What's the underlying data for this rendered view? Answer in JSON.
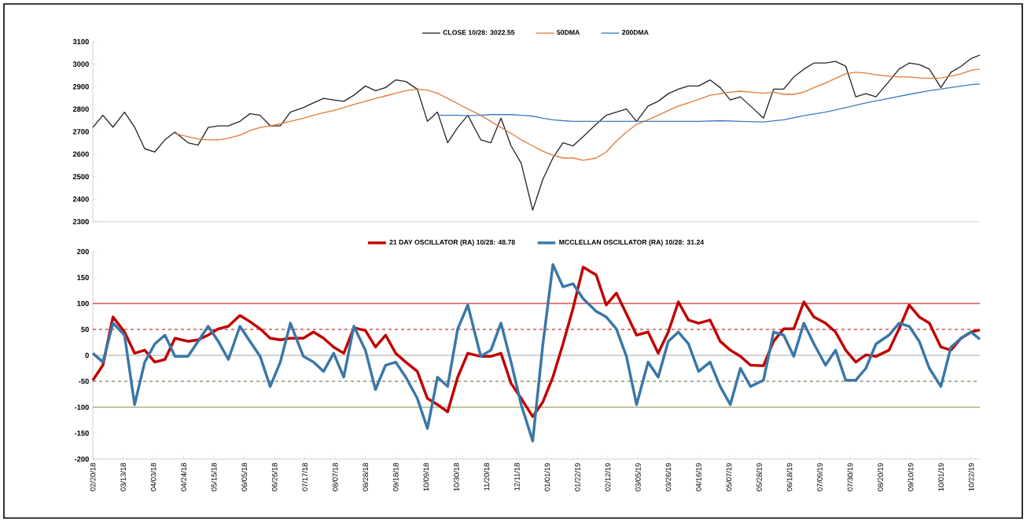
{
  "chart_data": [
    {
      "type": "line",
      "xlim": [
        "2018-02-20",
        "2019-10-28"
      ],
      "ylim": [
        2300,
        3100
      ],
      "yticks": [
        2300,
        2400,
        2500,
        2600,
        2700,
        2800,
        2900,
        3000,
        3100
      ],
      "tick_labels": "y",
      "legend": "top",
      "x": [
        "2018-02-20",
        "2018-02-27",
        "2018-03-06",
        "2018-03-14",
        "2018-03-21",
        "2018-03-28",
        "2018-04-04",
        "2018-04-11",
        "2018-04-18",
        "2018-04-27",
        "2018-05-04",
        "2018-05-11",
        "2018-05-18",
        "2018-05-25",
        "2018-06-02",
        "2018-06-09",
        "2018-06-16",
        "2018-06-23",
        "2018-06-30",
        "2018-07-07",
        "2018-07-16",
        "2018-07-23",
        "2018-07-30",
        "2018-08-06",
        "2018-08-13",
        "2018-08-20",
        "2018-08-28",
        "2018-09-04",
        "2018-09-11",
        "2018-09-18",
        "2018-09-25",
        "2018-10-03",
        "2018-10-10",
        "2018-10-17",
        "2018-10-24",
        "2018-10-31",
        "2018-11-07",
        "2018-11-16",
        "2018-11-23",
        "2018-11-30",
        "2018-12-07",
        "2018-12-14",
        "2018-12-22",
        "2018-12-29",
        "2019-01-05",
        "2019-01-12",
        "2019-01-19",
        "2019-01-26",
        "2019-02-04",
        "2019-02-11",
        "2019-02-18",
        "2019-02-25",
        "2019-03-04",
        "2019-03-12",
        "2019-03-19",
        "2019-03-26",
        "2019-04-02",
        "2019-04-09",
        "2019-04-16",
        "2019-04-24",
        "2019-05-01",
        "2019-05-08",
        "2019-05-15",
        "2019-05-22",
        "2019-05-31",
        "2019-06-07",
        "2019-06-14",
        "2019-06-21",
        "2019-06-28",
        "2019-07-05",
        "2019-07-13",
        "2019-07-20",
        "2019-07-27",
        "2019-08-03",
        "2019-08-10",
        "2019-08-17",
        "2019-08-26",
        "2019-09-02",
        "2019-09-09",
        "2019-09-16",
        "2019-09-23",
        "2019-10-01",
        "2019-10-08",
        "2019-10-15",
        "2019-10-22",
        "2019-10-28"
      ],
      "series": [
        {
          "name": "CLOSE 10/28: 3022.55",
          "color": "#262626",
          "values": [
            2719,
            2773,
            2720,
            2787,
            2720,
            2624,
            2610,
            2664,
            2698,
            2651,
            2640,
            2719,
            2726,
            2726,
            2746,
            2780,
            2773,
            2726,
            2726,
            2787,
            2807,
            2828,
            2848,
            2841,
            2835,
            2862,
            2903,
            2882,
            2896,
            2930,
            2923,
            2889,
            2746,
            2787,
            2651,
            2719,
            2773,
            2664,
            2651,
            2760,
            2637,
            2560,
            2351,
            2488,
            2583,
            2651,
            2637,
            2678,
            2733,
            2773,
            2787,
            2801,
            2746,
            2814,
            2835,
            2869,
            2889,
            2903,
            2903,
            2930,
            2896,
            2841,
            2855,
            2814,
            2760,
            2889,
            2889,
            2943,
            2978,
            3005,
            3005,
            3012,
            2991,
            2855,
            2869,
            2855,
            2923,
            2978,
            3005,
            2998,
            2978,
            2896,
            2964,
            2991,
            3025,
            3040
          ]
        },
        {
          "name": "50DMA",
          "color": "#e07b39",
          "values": [
            null,
            null,
            null,
            null,
            null,
            null,
            null,
            null,
            2692,
            2678,
            2667,
            2664,
            2664,
            2671,
            2685,
            2705,
            2719,
            2726,
            2735,
            2746,
            2760,
            2773,
            2784,
            2794,
            2807,
            2821,
            2835,
            2848,
            2859,
            2871,
            2882,
            2889,
            2885,
            2871,
            2848,
            2825,
            2801,
            2773,
            2746,
            2719,
            2692,
            2664,
            2637,
            2613,
            2596,
            2583,
            2583,
            2573,
            2583,
            2610,
            2658,
            2698,
            2733,
            2753,
            2773,
            2794,
            2814,
            2828,
            2844,
            2862,
            2869,
            2876,
            2880,
            2876,
            2871,
            2876,
            2866,
            2866,
            2876,
            2896,
            2916,
            2937,
            2957,
            2964,
            2961,
            2953,
            2947,
            2943,
            2943,
            2939,
            2937,
            2939,
            2947,
            2957,
            2973,
            2978
          ]
        },
        {
          "name": "200DMA",
          "color": "#3a7dc2",
          "x": [
            "2018-10-17",
            "2018-10-24",
            "2018-10-31",
            "2018-11-07",
            "2018-11-16",
            "2018-11-23",
            "2018-11-30",
            "2018-12-07",
            "2018-12-14",
            "2018-12-22",
            "2018-12-29",
            "2019-01-05",
            "2019-01-12",
            "2019-01-19",
            "2019-01-26",
            "2019-02-04",
            "2019-02-18",
            "2019-03-04",
            "2019-03-19",
            "2019-04-02",
            "2019-04-16",
            "2019-05-01",
            "2019-05-15",
            "2019-05-31",
            "2019-06-14",
            "2019-06-28",
            "2019-07-13",
            "2019-07-27",
            "2019-08-10",
            "2019-08-26",
            "2019-09-09",
            "2019-09-23",
            "2019-10-08",
            "2019-10-22",
            "2019-10-28"
          ],
          "values": [
            2773,
            2773,
            2773,
            2771,
            2773,
            2776,
            2776,
            2776,
            2773,
            2769,
            2760,
            2753,
            2749,
            2746,
            2746,
            2746,
            2746,
            2746,
            2746,
            2746,
            2746,
            2749,
            2746,
            2743,
            2753,
            2771,
            2787,
            2807,
            2828,
            2848,
            2866,
            2882,
            2896,
            2909,
            2912
          ]
        }
      ]
    },
    {
      "type": "line",
      "xlim": [
        "2018-02-20",
        "2019-10-28"
      ],
      "ylim": [
        -200,
        200
      ],
      "yticks": [
        -200,
        -150,
        -100,
        -50,
        0,
        50,
        100,
        150,
        200
      ],
      "legend": "top",
      "xticks": [
        {
          "value": "2018-02-20",
          "label": "02/20/18"
        },
        {
          "value": "2018-03-13",
          "label": "03/13/18"
        },
        {
          "value": "2018-04-03",
          "label": "04/03/18"
        },
        {
          "value": "2018-04-24",
          "label": "04/24/18"
        },
        {
          "value": "2018-05-15",
          "label": "05/15/18"
        },
        {
          "value": "2018-06-05",
          "label": "06/05/18"
        },
        {
          "value": "2018-06-26",
          "label": "06/26/18"
        },
        {
          "value": "2018-07-17",
          "label": "07/17/18"
        },
        {
          "value": "2018-08-07",
          "label": "08/07/18"
        },
        {
          "value": "2018-08-28",
          "label": "08/28/18"
        },
        {
          "value": "2018-09-18",
          "label": "09/18/18"
        },
        {
          "value": "2018-10-09",
          "label": "10/09/18"
        },
        {
          "value": "2018-10-30",
          "label": "10/30/18"
        },
        {
          "value": "2018-11-20",
          "label": "11/20/18"
        },
        {
          "value": "2018-12-11",
          "label": "12/11/18"
        },
        {
          "value": "2019-01-01",
          "label": "01/01/19"
        },
        {
          "value": "2019-01-22",
          "label": "01/22/19"
        },
        {
          "value": "2019-02-12",
          "label": "02/12/19"
        },
        {
          "value": "2019-03-05",
          "label": "03/05/19"
        },
        {
          "value": "2019-03-26",
          "label": "03/26/19"
        },
        {
          "value": "2019-04-16",
          "label": "04/16/19"
        },
        {
          "value": "2019-05-07",
          "label": "05/07/19"
        },
        {
          "value": "2019-05-28",
          "label": "05/28/19"
        },
        {
          "value": "2019-06-18",
          "label": "06/18/19"
        },
        {
          "value": "2019-07-09",
          "label": "07/09/19"
        },
        {
          "value": "2019-07-30",
          "label": "07/30/19"
        },
        {
          "value": "2019-08-20",
          "label": "08/20/19"
        },
        {
          "value": "2019-09-10",
          "label": "09/10/19"
        },
        {
          "value": "2019-10-01",
          "label": "10/01/19"
        },
        {
          "value": "2019-10-22",
          "label": "10/22/19"
        }
      ],
      "x": [
        "2018-02-20",
        "2018-02-27",
        "2018-03-06",
        "2018-03-14",
        "2018-03-21",
        "2018-03-28",
        "2018-04-04",
        "2018-04-11",
        "2018-04-18",
        "2018-04-27",
        "2018-05-04",
        "2018-05-11",
        "2018-05-18",
        "2018-05-25",
        "2018-06-02",
        "2018-06-09",
        "2018-06-16",
        "2018-06-23",
        "2018-06-30",
        "2018-07-07",
        "2018-07-16",
        "2018-07-23",
        "2018-07-30",
        "2018-08-06",
        "2018-08-13",
        "2018-08-20",
        "2018-08-28",
        "2018-09-04",
        "2018-09-11",
        "2018-09-18",
        "2018-09-25",
        "2018-10-03",
        "2018-10-10",
        "2018-10-17",
        "2018-10-24",
        "2018-10-31",
        "2018-11-07",
        "2018-11-16",
        "2018-11-23",
        "2018-11-30",
        "2018-12-07",
        "2018-12-14",
        "2018-12-22",
        "2018-12-29",
        "2019-01-05",
        "2019-01-12",
        "2019-01-19",
        "2019-01-26",
        "2019-02-04",
        "2019-02-11",
        "2019-02-18",
        "2019-02-25",
        "2019-03-04",
        "2019-03-12",
        "2019-03-19",
        "2019-03-26",
        "2019-04-02",
        "2019-04-09",
        "2019-04-16",
        "2019-04-24",
        "2019-05-01",
        "2019-05-08",
        "2019-05-15",
        "2019-05-22",
        "2019-05-31",
        "2019-06-07",
        "2019-06-14",
        "2019-06-21",
        "2019-06-28",
        "2019-07-05",
        "2019-07-13",
        "2019-07-20",
        "2019-07-27",
        "2019-08-03",
        "2019-08-10",
        "2019-08-17",
        "2019-08-26",
        "2019-09-02",
        "2019-09-09",
        "2019-09-16",
        "2019-09-23",
        "2019-10-01",
        "2019-10-08",
        "2019-10-15",
        "2019-10-22",
        "2019-10-28"
      ],
      "series": [
        {
          "name": "21 DAY OSCILLATOR (RA) 10/28: 48.78",
          "color": "#c00000",
          "values": [
            -48,
            -19,
            74,
            45,
            4,
            10,
            -13,
            -8,
            33,
            27,
            30,
            39,
            51,
            56,
            77,
            65,
            51,
            33,
            30,
            33,
            33,
            45,
            33,
            16,
            4,
            53,
            48,
            16,
            39,
            4,
            -13,
            -31,
            -83,
            -95,
            -109,
            -42,
            4,
            -2,
            -2,
            4,
            -54,
            -83,
            -118,
            -90,
            -42,
            22,
            91,
            170,
            155,
            97,
            120,
            80,
            39,
            45,
            4,
            45,
            103,
            68,
            62,
            68,
            27,
            10,
            -2,
            -19,
            -20,
            27,
            51,
            51,
            103,
            74,
            62,
            45,
            10,
            -13,
            1,
            -2,
            10,
            51,
            97,
            74,
            62,
            16,
            10,
            33,
            45,
            49
          ]
        },
        {
          "name": "MCCLELLAN OSCILLATOR (RA) 10/28: 31.24",
          "color": "#3a77a8",
          "values": [
            4,
            -13,
            62,
            39,
            -95,
            -13,
            22,
            39,
            -2,
            -2,
            27,
            56,
            27,
            -8,
            56,
            27,
            -2,
            -60,
            -13,
            62,
            -2,
            -13,
            -31,
            4,
            -42,
            56,
            10,
            -66,
            -19,
            -13,
            -42,
            -83,
            -141,
            -42,
            -60,
            51,
            97,
            -2,
            10,
            62,
            -13,
            -95,
            -165,
            20,
            175,
            132,
            138,
            109,
            85,
            74,
            51,
            -2,
            -95,
            -13,
            -42,
            27,
            45,
            22,
            -31,
            -13,
            -60,
            -95,
            -25,
            -60,
            -48,
            45,
            39,
            -2,
            62,
            22,
            -19,
            10,
            -48,
            -48,
            -25,
            22,
            39,
            62,
            56,
            27,
            -25,
            -60,
            16,
            33,
            45,
            31
          ]
        }
      ],
      "ref_lines": [
        {
          "axis": "y",
          "value": 100,
          "color": "#c00000",
          "line_style": "solid"
        },
        {
          "axis": "y",
          "value": 50,
          "color": "#c00000",
          "line_style": "dashed"
        },
        {
          "axis": "y",
          "value": 0,
          "color": "#a6a6a6",
          "line_style": "solid"
        },
        {
          "axis": "y",
          "value": -50,
          "color": "#4f6228",
          "line_style": "dashed"
        },
        {
          "axis": "y",
          "value": -100,
          "color": "#7f8f3f",
          "line_style": "solid"
        }
      ]
    }
  ]
}
